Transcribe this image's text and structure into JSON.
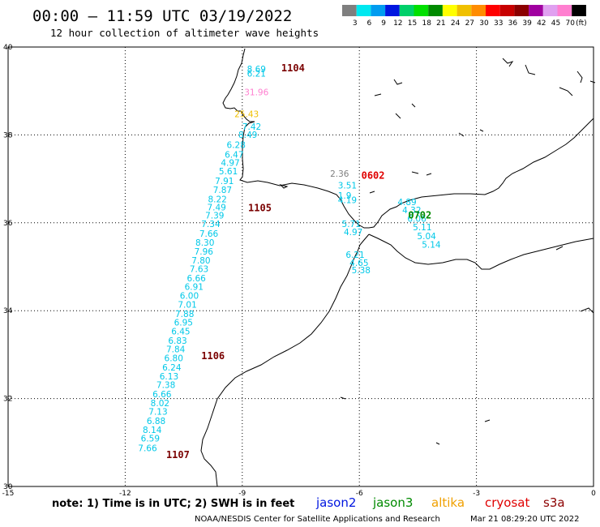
{
  "header": {
    "title": "00:00 – 11:59 UTC 03/19/2022",
    "subtitle": "12 hour collection of altimeter wave heights"
  },
  "legend": {
    "unit": "(ft)",
    "bins": [
      {
        "label": "3",
        "color": "#7f7f7f"
      },
      {
        "label": "6",
        "color": "#00e8f0"
      },
      {
        "label": "9",
        "color": "#009cf0"
      },
      {
        "label": "12",
        "color": "#0016e0"
      },
      {
        "label": "15",
        "color": "#00d06a"
      },
      {
        "label": "18",
        "color": "#00e000"
      },
      {
        "label": "21",
        "color": "#008a00"
      },
      {
        "label": "24",
        "color": "#ffff00"
      },
      {
        "label": "27",
        "color": "#f0c000"
      },
      {
        "label": "30",
        "color": "#ff8c00"
      },
      {
        "label": "33",
        "color": "#ff0000"
      },
      {
        "label": "36",
        "color": "#c80000"
      },
      {
        "label": "39",
        "color": "#8c0000"
      },
      {
        "label": "42",
        "color": "#a000a0"
      },
      {
        "label": "45",
        "color": "#e0a0f0"
      },
      {
        "label": "70",
        "color": "#ff7fd0"
      },
      {
        "label": "",
        "color": "#000000"
      }
    ]
  },
  "map": {
    "lon_range": [
      -15,
      0
    ],
    "lat_range": [
      30,
      40
    ],
    "x_ticks": [
      "-15",
      "-12",
      "-9",
      "-6",
      "-3",
      "0"
    ],
    "y_ticks": [
      "40",
      "38",
      "36",
      "34",
      "32",
      "30"
    ]
  },
  "passes": [
    {
      "label": "1104",
      "lon": -8.0,
      "lat": 39.45,
      "color": "#7a0000"
    },
    {
      "label": "1105",
      "lon": -8.85,
      "lat": 36.26,
      "color": "#7a0000"
    },
    {
      "label": "1106",
      "lon": -10.05,
      "lat": 32.9,
      "color": "#7a0000"
    },
    {
      "label": "1107",
      "lon": -10.95,
      "lat": 30.65,
      "color": "#7a0000"
    },
    {
      "label": "0602",
      "lon": -5.95,
      "lat": 37.0,
      "color": "#e00000"
    },
    {
      "label": "0702",
      "lon": -4.75,
      "lat": 36.1,
      "color": "#008a00"
    }
  ],
  "observations": [
    {
      "label": "8.69",
      "lon": -8.88,
      "lat": 39.43,
      "color": "#00c8e8"
    },
    {
      "label": "6.21",
      "lon": -8.88,
      "lat": 39.33,
      "color": "#00c8e8"
    },
    {
      "label": "31.96",
      "lon": -8.95,
      "lat": 38.9,
      "color": "#ff7fd0"
    },
    {
      "label": "25.43",
      "lon": -9.2,
      "lat": 38.4,
      "color": "#f0c000"
    },
    {
      "label": "7.42",
      "lon": -9.0,
      "lat": 38.12,
      "color": "#00c8e8"
    },
    {
      "label": "8.49",
      "lon": -9.1,
      "lat": 37.93,
      "color": "#00c8e8"
    },
    {
      "label": "6.28",
      "lon": -9.4,
      "lat": 37.7,
      "color": "#00c8e8"
    },
    {
      "label": "6.47",
      "lon": -9.45,
      "lat": 37.48,
      "color": "#00c8e8"
    },
    {
      "label": "4.97",
      "lon": -9.55,
      "lat": 37.3,
      "color": "#00c8e8"
    },
    {
      "label": "5.61",
      "lon": -9.6,
      "lat": 37.1,
      "color": "#00c8e8"
    },
    {
      "label": "7.91",
      "lon": -9.7,
      "lat": 36.88,
      "color": "#00c8e8"
    },
    {
      "label": "7.87",
      "lon": -9.75,
      "lat": 36.68,
      "color": "#00c8e8"
    },
    {
      "label": "8.22",
      "lon": -9.88,
      "lat": 36.47,
      "color": "#00c8e8"
    },
    {
      "label": "7.49",
      "lon": -9.9,
      "lat": 36.28,
      "color": "#00c8e8"
    },
    {
      "label": "7.39",
      "lon": -9.95,
      "lat": 36.1,
      "color": "#00c8e8"
    },
    {
      "label": "7.34",
      "lon": -10.05,
      "lat": 35.9,
      "color": "#00c8e8"
    },
    {
      "label": "7.66",
      "lon": -10.1,
      "lat": 35.68,
      "color": "#00c8e8"
    },
    {
      "label": "8.30",
      "lon": -10.2,
      "lat": 35.48,
      "color": "#00c8e8"
    },
    {
      "label": "7.96",
      "lon": -10.23,
      "lat": 35.28,
      "color": "#00c8e8"
    },
    {
      "label": "7.80",
      "lon": -10.3,
      "lat": 35.07,
      "color": "#00c8e8"
    },
    {
      "label": "7.63",
      "lon": -10.35,
      "lat": 34.88,
      "color": "#00c8e8"
    },
    {
      "label": "6.66",
      "lon": -10.42,
      "lat": 34.67,
      "color": "#00c8e8"
    },
    {
      "label": "6.91",
      "lon": -10.48,
      "lat": 34.47,
      "color": "#00c8e8"
    },
    {
      "label": "6.00",
      "lon": -10.6,
      "lat": 34.27,
      "color": "#00c8e8"
    },
    {
      "label": "7.01",
      "lon": -10.65,
      "lat": 34.07,
      "color": "#00c8e8"
    },
    {
      "label": "7.88",
      "lon": -10.72,
      "lat": 33.86,
      "color": "#00c8e8"
    },
    {
      "label": "6.95",
      "lon": -10.75,
      "lat": 33.66,
      "color": "#00c8e8"
    },
    {
      "label": "6.45",
      "lon": -10.82,
      "lat": 33.46,
      "color": "#00c8e8"
    },
    {
      "label": "6.83",
      "lon": -10.9,
      "lat": 33.25,
      "color": "#00c8e8"
    },
    {
      "label": "7.84",
      "lon": -10.95,
      "lat": 33.05,
      "color": "#00c8e8"
    },
    {
      "label": "6.80",
      "lon": -11.0,
      "lat": 32.85,
      "color": "#00c8e8"
    },
    {
      "label": "6.24",
      "lon": -11.05,
      "lat": 32.64,
      "color": "#00c8e8"
    },
    {
      "label": "6.13",
      "lon": -11.12,
      "lat": 32.44,
      "color": "#00c8e8"
    },
    {
      "label": "7.38",
      "lon": -11.2,
      "lat": 32.24,
      "color": "#00c8e8"
    },
    {
      "label": "6.66",
      "lon": -11.3,
      "lat": 32.03,
      "color": "#00c8e8"
    },
    {
      "label": "8.02",
      "lon": -11.35,
      "lat": 31.83,
      "color": "#00c8e8"
    },
    {
      "label": "7.13",
      "lon": -11.4,
      "lat": 31.63,
      "color": "#00c8e8"
    },
    {
      "label": "6.88",
      "lon": -11.45,
      "lat": 31.42,
      "color": "#00c8e8"
    },
    {
      "label": "8.14",
      "lon": -11.55,
      "lat": 31.22,
      "color": "#00c8e8"
    },
    {
      "label": "6.59",
      "lon": -11.6,
      "lat": 31.02,
      "color": "#00c8e8"
    },
    {
      "label": "7.66",
      "lon": -11.67,
      "lat": 30.8,
      "color": "#00c8e8"
    },
    {
      "label": "2.36",
      "lon": -6.75,
      "lat": 37.05,
      "color": "#7f7f7f"
    },
    {
      "label": "3.51",
      "lon": -6.55,
      "lat": 36.78,
      "color": "#00c8e8"
    },
    {
      "label": "1.9",
      "lon": -6.55,
      "lat": 36.55,
      "color": "#00c8e8"
    },
    {
      "label": "4.19",
      "lon": -6.55,
      "lat": 36.45,
      "color": "#00c8e8"
    },
    {
      "label": "4.89",
      "lon": -5.02,
      "lat": 36.4,
      "color": "#00c8e8"
    },
    {
      "label": "4.32",
      "lon": -4.9,
      "lat": 36.22,
      "color": "#00c8e8"
    },
    {
      "label": "6.06",
      "lon": -4.77,
      "lat": 36.02,
      "color": "#00c8e8"
    },
    {
      "label": "5.11",
      "lon": -4.63,
      "lat": 35.83,
      "color": "#00c8e8"
    },
    {
      "label": "5.04",
      "lon": -4.52,
      "lat": 35.63,
      "color": "#00c8e8"
    },
    {
      "label": "5.14",
      "lon": -4.4,
      "lat": 35.43,
      "color": "#00c8e8"
    },
    {
      "label": "5.71",
      "lon": -6.45,
      "lat": 35.9,
      "color": "#00c8e8"
    },
    {
      "label": "4.97",
      "lon": -6.4,
      "lat": 35.72,
      "color": "#00c8e8"
    },
    {
      "label": "6.21",
      "lon": -6.35,
      "lat": 35.2,
      "color": "#00c8e8"
    },
    {
      "label": "4.65",
      "lon": -6.25,
      "lat": 35.02,
      "color": "#00c8e8"
    },
    {
      "label": "5.38",
      "lon": -6.2,
      "lat": 34.85,
      "color": "#00c8e8"
    }
  ],
  "footer": {
    "note": "note:  1) Time is in UTC;  2) SWH is in feet",
    "satellites": [
      {
        "label": "jason2",
        "color": "#0016e0"
      },
      {
        "label": "jason3",
        "color": "#008a00"
      },
      {
        "label": "altika",
        "color": "#f0a000"
      },
      {
        "label": "cryosat",
        "color": "#e00000"
      },
      {
        "label": "s3a",
        "color": "#8c0000"
      }
    ],
    "credit": "NOAA/NESDIS Center for Satellite Applications and Research",
    "timestamp": "Mar 21 08:29:20 UTC 2022"
  }
}
